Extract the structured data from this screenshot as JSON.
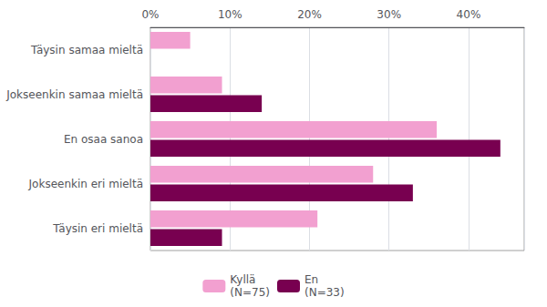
{
  "chart_data": {
    "type": "bar",
    "orientation": "horizontal",
    "categories": [
      "Täysin samaa mieltä",
      "Jokseenkin samaa mieltä",
      "En osaa sanoa",
      "Jokseenkin eri mieltä",
      "Täysin eri mieltä"
    ],
    "series": [
      {
        "name": "Kyllä\n(N=75)",
        "color": "#f2a0d0",
        "values": [
          5,
          9,
          36,
          28,
          21
        ]
      },
      {
        "name": "En\n(N=33)",
        "color": "#780050",
        "values": [
          0,
          14,
          44,
          33,
          9
        ]
      }
    ],
    "xlim": [
      0,
      47
    ],
    "xticks": [
      {
        "value": 0,
        "label": "0%"
      },
      {
        "value": 10,
        "label": "10%"
      },
      {
        "value": 20,
        "label": "20%"
      },
      {
        "value": 30,
        "label": "30%"
      },
      {
        "value": 40,
        "label": "40%"
      }
    ],
    "grid": true,
    "legend": "bottom"
  }
}
